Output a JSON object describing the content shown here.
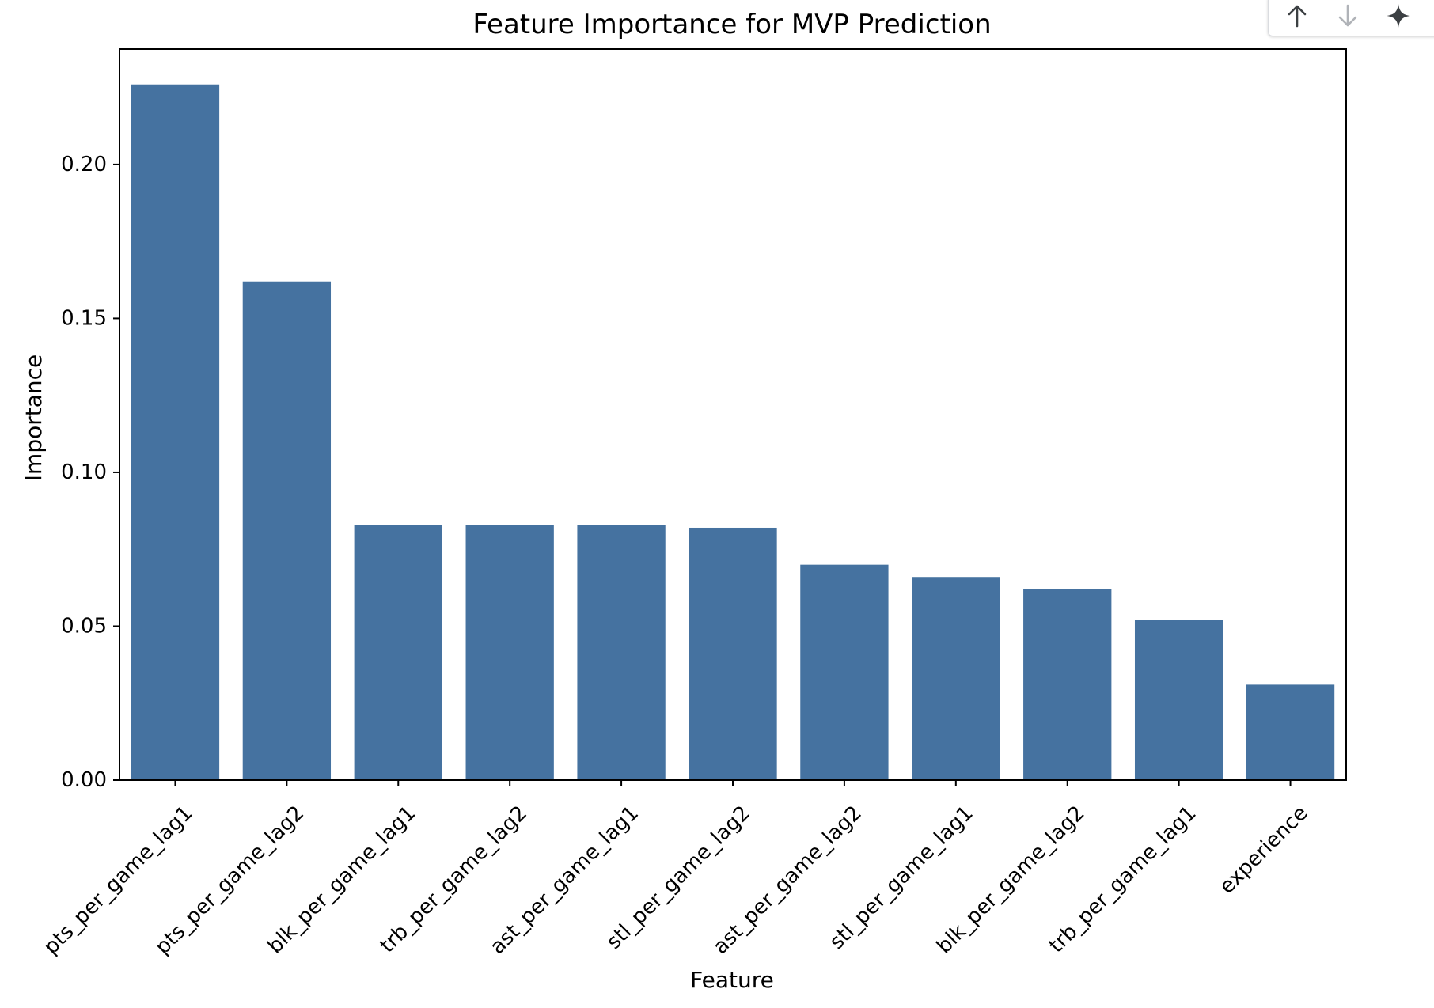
{
  "chart_data": {
    "type": "bar",
    "title": "Feature Importance for MVP Prediction",
    "xlabel": "Feature",
    "ylabel": "Importance",
    "categories": [
      "pts_per_game_lag1",
      "pts_per_game_lag2",
      "blk_per_game_lag1",
      "trb_per_game_lag2",
      "ast_per_game_lag1",
      "stl_per_game_lag2",
      "ast_per_game_lag2",
      "stl_per_game_lag1",
      "blk_per_game_lag2",
      "trb_per_game_lag1",
      "experience"
    ],
    "values": [
      0.226,
      0.162,
      0.083,
      0.083,
      0.083,
      0.082,
      0.07,
      0.066,
      0.062,
      0.052,
      0.031
    ],
    "ylim": [
      0,
      0.2375
    ],
    "yticks": [
      0.0,
      0.05,
      0.1,
      0.15,
      0.2
    ],
    "ytick_labels": [
      "0.00",
      "0.05",
      "0.10",
      "0.15",
      "0.20"
    ],
    "grid": false,
    "bar_color": "#4572a0",
    "tick_label_rotation": 45
  },
  "toolbar": {
    "icons": [
      "arrow-up-icon",
      "arrow-down-icon",
      "sparkle-icon"
    ],
    "colors": {
      "active": "#3c4043",
      "disabled": "#b0b3b8"
    }
  }
}
